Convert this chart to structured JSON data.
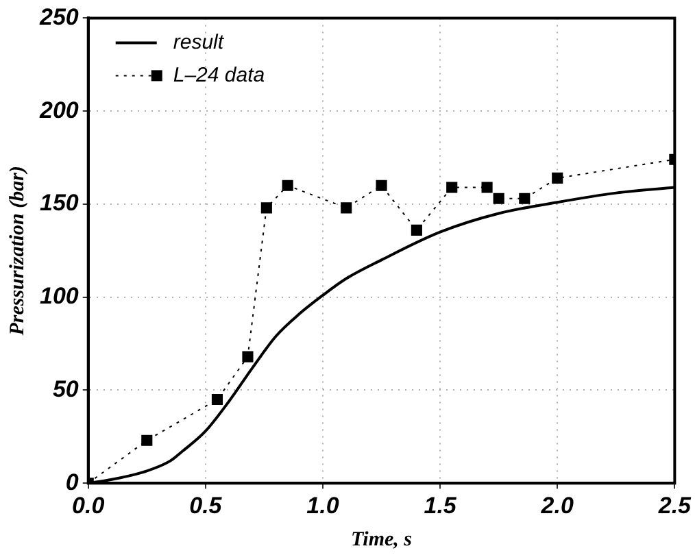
{
  "chart_data": {
    "type": "line",
    "xlabel": "Time, s",
    "ylabel": "Pressurization (bar)",
    "xlim": [
      0,
      2.5
    ],
    "xticks": [
      {
        "value": 0,
        "label": "0.0"
      },
      {
        "value": 0.5,
        "label": "0.5"
      },
      {
        "value": 1,
        "label": "1.0"
      },
      {
        "value": 1.5,
        "label": "1.5"
      },
      {
        "value": 2,
        "label": "2.0"
      },
      {
        "value": 2.5,
        "label": "2.5"
      }
    ],
    "ylim": [
      0,
      250
    ],
    "yticks": [
      0,
      50,
      100,
      150,
      200,
      250
    ],
    "grid": true,
    "legend": "top left",
    "series": [
      {
        "name": "result",
        "color": "#000000",
        "marker": "none",
        "line_style": "solid",
        "x": [
          0,
          0.1,
          0.25,
          0.35,
          0.4,
          0.5,
          0.6,
          0.7,
          0.8,
          0.9,
          1.0,
          1.1,
          1.25,
          1.5,
          1.75,
          2.0,
          2.25,
          2.5
        ],
        "values": [
          0,
          2,
          6.6,
          12,
          17,
          28,
          44,
          62,
          79,
          91,
          101,
          110,
          120,
          135,
          145,
          151,
          156,
          159
        ]
      },
      {
        "name": "L–24 data",
        "color": "#000000",
        "marker": "square",
        "line_style": "dotted",
        "x": [
          0,
          0.25,
          0.55,
          0.68,
          0.76,
          0.85,
          1.1,
          1.25,
          1.4,
          1.55,
          1.7,
          1.75,
          1.86,
          2.0,
          2.5
        ],
        "values": [
          0,
          23,
          45,
          68,
          148,
          160,
          148,
          160,
          136,
          159,
          159,
          153,
          153,
          164,
          174
        ]
      }
    ]
  }
}
